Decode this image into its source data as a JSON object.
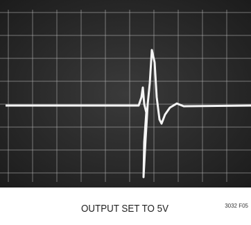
{
  "figure": {
    "caption": "OUTPUT SET TO 5V",
    "figure_id": "3032 F05"
  }
}
